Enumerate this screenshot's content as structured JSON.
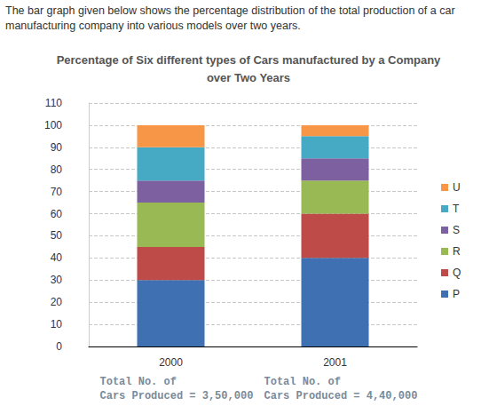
{
  "caption": "The bar graph given below shows the percentage distribution of the total production of a car manufacturing company into various models over two years.",
  "chart_data": {
    "type": "bar",
    "title": "Percentage of Six different types of Cars manufactured by a Company over Two Years",
    "categories": [
      "2000",
      "2001"
    ],
    "series": [
      {
        "name": "P",
        "color": "#3f70b2",
        "values": [
          30,
          40
        ]
      },
      {
        "name": "Q",
        "color": "#be4b48",
        "values": [
          15,
          20
        ]
      },
      {
        "name": "R",
        "color": "#98b954",
        "values": [
          20,
          15
        ]
      },
      {
        "name": "S",
        "color": "#7d60a0",
        "values": [
          10,
          10
        ]
      },
      {
        "name": "T",
        "color": "#46aac5",
        "values": [
          15,
          10
        ]
      },
      {
        "name": "U",
        "color": "#f79646",
        "values": [
          10,
          5
        ]
      }
    ],
    "stacked": true,
    "ylim": [
      0,
      110
    ],
    "yticks": [
      0,
      10,
      20,
      30,
      40,
      50,
      60,
      70,
      80,
      90,
      100,
      110
    ],
    "grid": true,
    "legend": "right",
    "annotations": [
      {
        "x": "2000",
        "lines": [
          "Total No. of",
          "Cars Produced = 3,50,000"
        ]
      },
      {
        "x": "2001",
        "lines": [
          "Total No. of",
          "Cars Produced = 4,40,000"
        ]
      }
    ]
  }
}
